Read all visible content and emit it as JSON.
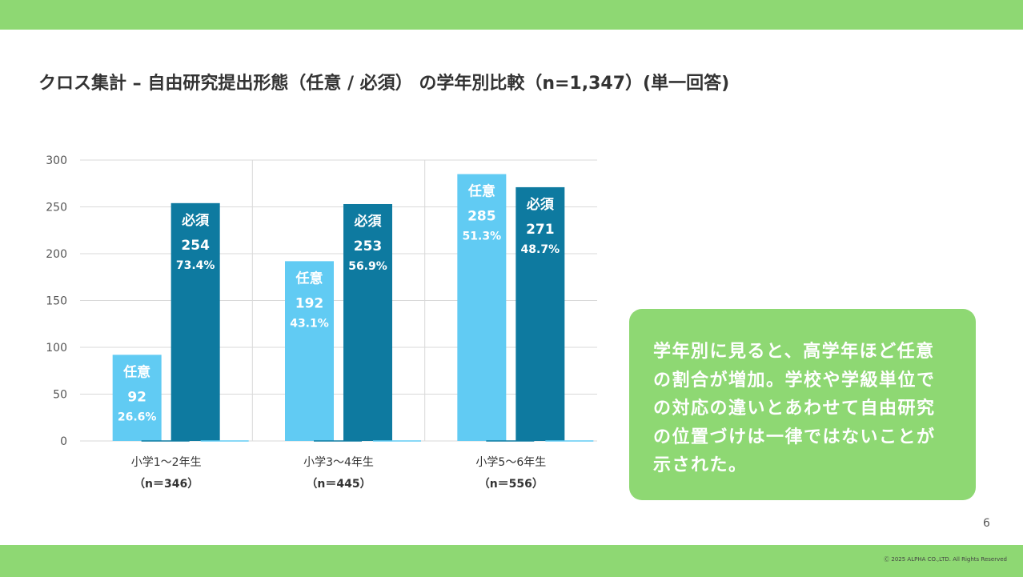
{
  "title": "クロス集計 – 自由研究提出形態（任意 / 必須） の学年別比較（n=1,347）(単一回答)",
  "colors": {
    "accent_green": "#8ed873",
    "optional_bar": "#61cbf3",
    "required_bar": "#0e7aa0",
    "grid": "#d9d9d9"
  },
  "chart_data": {
    "type": "bar",
    "categories": [
      "小学1～2年生",
      "小学3～4年生",
      "小学5～6年生"
    ],
    "category_n": [
      "（n＝346）",
      "（n＝445）",
      "（n＝556）"
    ],
    "series": [
      {
        "name": "任意",
        "values": [
          92,
          192,
          285
        ],
        "percent_labels": [
          "26.6%",
          "43.1%",
          "51.3%"
        ]
      },
      {
        "name": "必須",
        "values": [
          254,
          253,
          271
        ],
        "percent_labels": [
          "73.4%",
          "56.9%",
          "48.7%"
        ]
      }
    ],
    "ylim": [
      0,
      300
    ],
    "y_ticks": [
      0,
      50,
      100,
      150,
      200,
      250,
      300
    ],
    "grid": true,
    "legend": "none (series names shown inside bars)"
  },
  "comment": {
    "lines": [
      "学年別に見ると、高学年ほど任意",
      "の割合が増加。学校や学級単位で",
      "の対応の違いとあわせて自由研究",
      "の位置づけは一律ではないことが",
      "示された。"
    ]
  },
  "page_number": "6",
  "copyright": "Ⓒ 2025 ALPHA CO.,LTD. All Rights Reserved"
}
